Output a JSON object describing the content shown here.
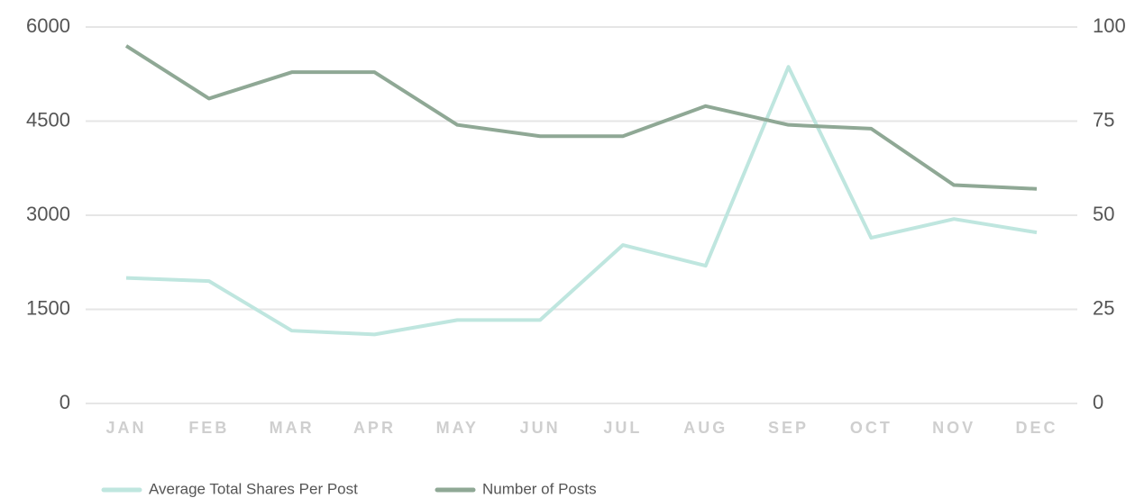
{
  "chart_data": {
    "type": "line",
    "categories": [
      "JAN",
      "FEB",
      "MAR",
      "APR",
      "MAY",
      "JUN",
      "JUL",
      "AUG",
      "SEP",
      "OCT",
      "NOV",
      "DEC"
    ],
    "series": [
      {
        "name": "Average Total Shares Per Post",
        "color": "#bfe6df",
        "axis": "y",
        "values": [
          2000,
          1950,
          1160,
          1100,
          1330,
          1330,
          2525,
          2195,
          5365,
          2640,
          2940,
          2725
        ]
      },
      {
        "name": "Number of Posts",
        "color": "#8fa895",
        "axis": "y2",
        "values": [
          95,
          81,
          88,
          88,
          74,
          71,
          71,
          79,
          74,
          73,
          58,
          57
        ]
      }
    ],
    "ylim": [
      0,
      6000
    ],
    "yticks": [
      0,
      1500,
      3000,
      4500,
      6000
    ],
    "y2lim": [
      0,
      100
    ],
    "y2ticks": [
      0,
      25,
      50,
      75,
      100
    ],
    "grid": true,
    "legend": "bottom-left"
  }
}
